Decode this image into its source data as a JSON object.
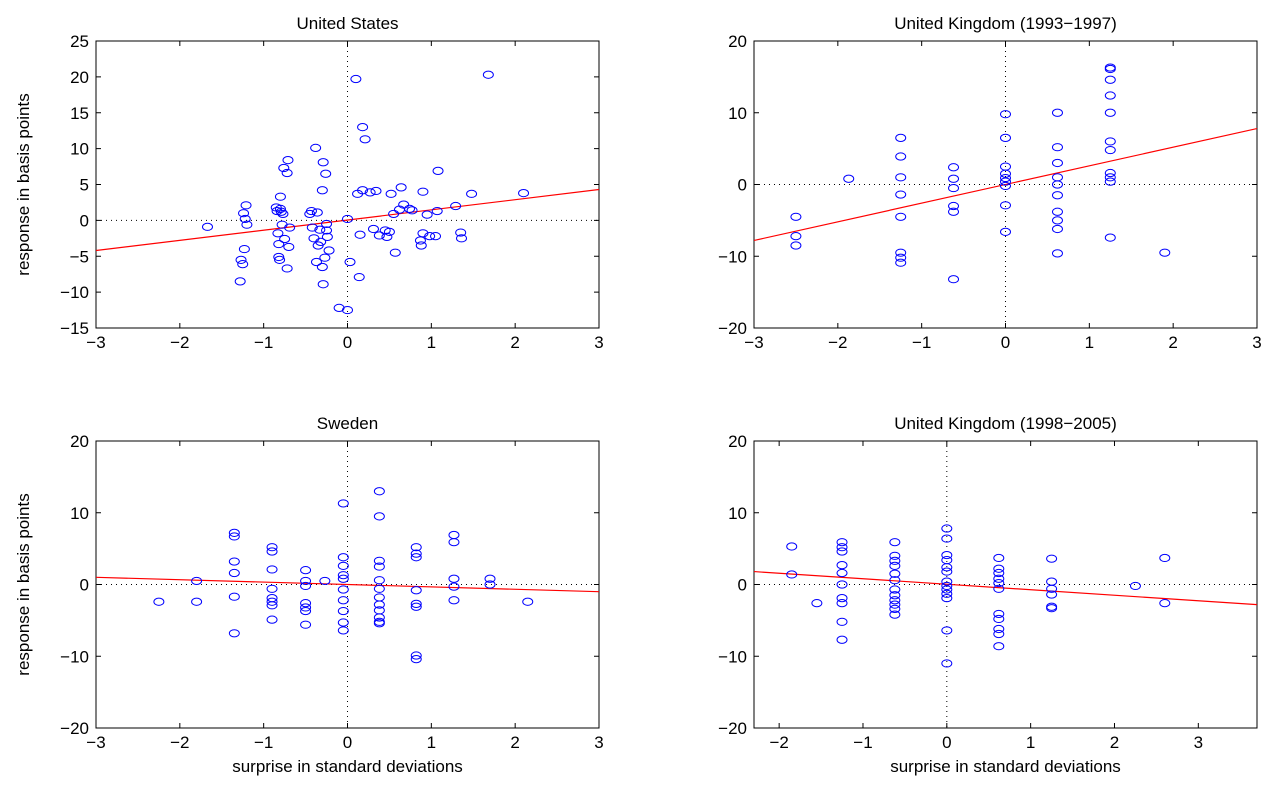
{
  "colors": {
    "marker": "#0000ff",
    "fit": "#ff0000",
    "axis": "#000000",
    "zero_line": "#000000"
  },
  "chart_data": [
    {
      "type": "scatter",
      "title": "United States",
      "xlabel": "",
      "ylabel": "response in basis points",
      "xlim": [
        -3,
        3
      ],
      "ylim": [
        -15,
        25
      ],
      "xticks": [
        -3,
        -2,
        -1,
        0,
        1,
        2,
        3
      ],
      "yticks": [
        -15,
        -10,
        -5,
        0,
        5,
        10,
        15,
        20,
        25
      ],
      "grid": false,
      "reference_lines": {
        "x": 0,
        "y": 0,
        "style": "dotted"
      },
      "fit_line": {
        "x": [
          -3,
          3
        ],
        "y": [
          -4.2,
          4.3
        ]
      },
      "points": [
        {
          "x": -1.67,
          "y": -0.9
        },
        {
          "x": -1.28,
          "y": -8.5
        },
        {
          "x": -1.27,
          "y": -5.5
        },
        {
          "x": -1.25,
          "y": -6.1
        },
        {
          "x": -1.24,
          "y": 1.0
        },
        {
          "x": -1.23,
          "y": -4.0
        },
        {
          "x": -1.22,
          "y": 0.2
        },
        {
          "x": -1.21,
          "y": 2.1
        },
        {
          "x": -1.2,
          "y": -0.6
        },
        {
          "x": -0.85,
          "y": 1.8
        },
        {
          "x": -0.84,
          "y": 1.3
        },
        {
          "x": -0.83,
          "y": -1.8
        },
        {
          "x": -0.82,
          "y": -3.3
        },
        {
          "x": -0.82,
          "y": -5.1
        },
        {
          "x": -0.81,
          "y": -5.5
        },
        {
          "x": -0.8,
          "y": 3.3
        },
        {
          "x": -0.8,
          "y": 1.6
        },
        {
          "x": -0.79,
          "y": 1.2
        },
        {
          "x": -0.78,
          "y": -0.6
        },
        {
          "x": -0.77,
          "y": 0.9
        },
        {
          "x": -0.76,
          "y": 7.3
        },
        {
          "x": -0.75,
          "y": -2.6
        },
        {
          "x": -0.72,
          "y": 6.6
        },
        {
          "x": -0.72,
          "y": -6.7
        },
        {
          "x": -0.71,
          "y": 8.4
        },
        {
          "x": -0.7,
          "y": -3.7
        },
        {
          "x": -0.69,
          "y": -1.0
        },
        {
          "x": -0.45,
          "y": 0.9
        },
        {
          "x": -0.43,
          "y": 1.3
        },
        {
          "x": -0.42,
          "y": -1.0
        },
        {
          "x": -0.4,
          "y": -2.5
        },
        {
          "x": -0.38,
          "y": 10.1
        },
        {
          "x": -0.37,
          "y": -5.8
        },
        {
          "x": -0.36,
          "y": 1.1
        },
        {
          "x": -0.35,
          "y": -3.5
        },
        {
          "x": -0.33,
          "y": -1.3
        },
        {
          "x": -0.32,
          "y": -3.0
        },
        {
          "x": -0.3,
          "y": 4.2
        },
        {
          "x": -0.3,
          "y": -6.5
        },
        {
          "x": -0.29,
          "y": 8.1
        },
        {
          "x": -0.29,
          "y": -8.9
        },
        {
          "x": -0.27,
          "y": -5.2
        },
        {
          "x": -0.26,
          "y": 6.5
        },
        {
          "x": -0.25,
          "y": -0.5
        },
        {
          "x": -0.25,
          "y": -1.4
        },
        {
          "x": -0.24,
          "y": -2.3
        },
        {
          "x": -0.22,
          "y": -4.2
        },
        {
          "x": -0.1,
          "y": -12.2
        },
        {
          "x": 0.0,
          "y": 0.2
        },
        {
          "x": 0.0,
          "y": -12.5
        },
        {
          "x": 0.03,
          "y": -5.8
        },
        {
          "x": 0.1,
          "y": 19.7
        },
        {
          "x": 0.12,
          "y": 3.7
        },
        {
          "x": 0.14,
          "y": -7.9
        },
        {
          "x": 0.15,
          "y": -2.0
        },
        {
          "x": 0.18,
          "y": 4.2
        },
        {
          "x": 0.18,
          "y": 13.0
        },
        {
          "x": 0.21,
          "y": 11.3
        },
        {
          "x": 0.27,
          "y": 3.9
        },
        {
          "x": 0.31,
          "y": -1.2
        },
        {
          "x": 0.34,
          "y": 4.1
        },
        {
          "x": 0.38,
          "y": -2.1
        },
        {
          "x": 0.45,
          "y": -1.4
        },
        {
          "x": 0.47,
          "y": -2.3
        },
        {
          "x": 0.5,
          "y": -1.6
        },
        {
          "x": 0.52,
          "y": 3.7
        },
        {
          "x": 0.55,
          "y": 0.9
        },
        {
          "x": 0.57,
          "y": -4.5
        },
        {
          "x": 0.62,
          "y": 1.5
        },
        {
          "x": 0.64,
          "y": 4.6
        },
        {
          "x": 0.67,
          "y": 2.2
        },
        {
          "x": 0.74,
          "y": 1.6
        },
        {
          "x": 0.77,
          "y": 1.4
        },
        {
          "x": 0.87,
          "y": -2.8
        },
        {
          "x": 0.88,
          "y": -3.5
        },
        {
          "x": 0.9,
          "y": -1.8
        },
        {
          "x": 0.9,
          "y": 4.0
        },
        {
          "x": 0.95,
          "y": 0.8
        },
        {
          "x": 0.98,
          "y": -2.2
        },
        {
          "x": 1.05,
          "y": -2.2
        },
        {
          "x": 1.07,
          "y": 1.3
        },
        {
          "x": 1.08,
          "y": 6.9
        },
        {
          "x": 1.29,
          "y": 2.0
        },
        {
          "x": 1.35,
          "y": -1.7
        },
        {
          "x": 1.36,
          "y": -2.5
        },
        {
          "x": 1.48,
          "y": 3.7
        },
        {
          "x": 1.68,
          "y": 20.3
        },
        {
          "x": 2.1,
          "y": 3.8
        }
      ]
    },
    {
      "type": "scatter",
      "title": "United Kingdom (1993−1997)",
      "xlabel": "",
      "ylabel": "",
      "xlim": [
        -3,
        3
      ],
      "ylim": [
        -20,
        20
      ],
      "xticks": [
        -3,
        -2,
        -1,
        0,
        1,
        2,
        3
      ],
      "yticks": [
        -20,
        -10,
        0,
        10,
        20
      ],
      "grid": false,
      "reference_lines": {
        "x": 0,
        "y": 0,
        "style": "dotted"
      },
      "fit_line": {
        "x": [
          -3,
          3
        ],
        "y": [
          -7.8,
          7.8
        ]
      },
      "points": [
        {
          "x": -2.5,
          "y": -4.5
        },
        {
          "x": -2.5,
          "y": -7.2
        },
        {
          "x": -2.5,
          "y": -8.5
        },
        {
          "x": -1.87,
          "y": 0.8
        },
        {
          "x": -1.25,
          "y": 6.5
        },
        {
          "x": -1.25,
          "y": 3.9
        },
        {
          "x": -1.25,
          "y": 1.0
        },
        {
          "x": -1.25,
          "y": -1.4
        },
        {
          "x": -1.25,
          "y": -4.5
        },
        {
          "x": -1.25,
          "y": -9.5
        },
        {
          "x": -1.25,
          "y": -10.2
        },
        {
          "x": -1.25,
          "y": -10.9
        },
        {
          "x": -0.62,
          "y": 2.4
        },
        {
          "x": -0.62,
          "y": 0.8
        },
        {
          "x": -0.62,
          "y": -0.5
        },
        {
          "x": -0.62,
          "y": -3.0
        },
        {
          "x": -0.62,
          "y": -3.8
        },
        {
          "x": -0.62,
          "y": -13.2
        },
        {
          "x": 0.0,
          "y": 9.8
        },
        {
          "x": 0.0,
          "y": 6.5
        },
        {
          "x": 0.0,
          "y": 2.5
        },
        {
          "x": 0.0,
          "y": 1.5
        },
        {
          "x": 0.0,
          "y": 0.9
        },
        {
          "x": 0.0,
          "y": 0.4
        },
        {
          "x": 0.0,
          "y": -0.2
        },
        {
          "x": 0.0,
          "y": -2.9
        },
        {
          "x": 0.0,
          "y": -6.6
        },
        {
          "x": 0.62,
          "y": 10.0
        },
        {
          "x": 0.62,
          "y": 5.2
        },
        {
          "x": 0.62,
          "y": 3.0
        },
        {
          "x": 0.62,
          "y": 1.0
        },
        {
          "x": 0.62,
          "y": 0.0
        },
        {
          "x": 0.62,
          "y": -1.5
        },
        {
          "x": 0.62,
          "y": -3.8
        },
        {
          "x": 0.62,
          "y": -5.0
        },
        {
          "x": 0.62,
          "y": -6.2
        },
        {
          "x": 0.62,
          "y": -9.6
        },
        {
          "x": 1.25,
          "y": 16.3
        },
        {
          "x": 1.25,
          "y": 16.1
        },
        {
          "x": 1.25,
          "y": 14.6
        },
        {
          "x": 1.25,
          "y": 12.4
        },
        {
          "x": 1.25,
          "y": 10.0
        },
        {
          "x": 1.25,
          "y": 6.0
        },
        {
          "x": 1.25,
          "y": 4.8
        },
        {
          "x": 1.25,
          "y": 1.6
        },
        {
          "x": 1.25,
          "y": 1.0
        },
        {
          "x": 1.25,
          "y": 0.4
        },
        {
          "x": 1.25,
          "y": -7.4
        },
        {
          "x": 1.9,
          "y": -9.5
        }
      ]
    },
    {
      "type": "scatter",
      "title": "Sweden",
      "xlabel": "surprise in standard deviations",
      "ylabel": "response in basis points",
      "xlim": [
        -3,
        3
      ],
      "ylim": [
        -20,
        20
      ],
      "xticks": [
        -3,
        -2,
        -1,
        0,
        1,
        2,
        3
      ],
      "yticks": [
        -20,
        -10,
        0,
        10,
        20
      ],
      "grid": false,
      "reference_lines": {
        "x": 0,
        "y": 0,
        "style": "dotted"
      },
      "fit_line": {
        "x": [
          -3,
          3
        ],
        "y": [
          1.0,
          -1.0
        ]
      },
      "points": [
        {
          "x": -2.25,
          "y": -2.4
        },
        {
          "x": -1.8,
          "y": 0.5
        },
        {
          "x": -1.8,
          "y": -2.4
        },
        {
          "x": -1.35,
          "y": 7.2
        },
        {
          "x": -1.35,
          "y": 6.7
        },
        {
          "x": -1.35,
          "y": 3.2
        },
        {
          "x": -1.35,
          "y": 1.6
        },
        {
          "x": -1.35,
          "y": -1.7
        },
        {
          "x": -1.35,
          "y": -6.8
        },
        {
          "x": -0.9,
          "y": 5.2
        },
        {
          "x": -0.9,
          "y": 4.6
        },
        {
          "x": -0.9,
          "y": 2.1
        },
        {
          "x": -0.9,
          "y": -0.6
        },
        {
          "x": -0.9,
          "y": -1.9
        },
        {
          "x": -0.9,
          "y": -2.4
        },
        {
          "x": -0.9,
          "y": -2.9
        },
        {
          "x": -0.9,
          "y": -4.9
        },
        {
          "x": -0.5,
          "y": 2.0
        },
        {
          "x": -0.5,
          "y": 0.5
        },
        {
          "x": -0.5,
          "y": -0.2
        },
        {
          "x": -0.5,
          "y": -2.6
        },
        {
          "x": -0.5,
          "y": -3.2
        },
        {
          "x": -0.5,
          "y": -3.7
        },
        {
          "x": -0.5,
          "y": -5.6
        },
        {
          "x": -0.27,
          "y": 0.5
        },
        {
          "x": -0.05,
          "y": 11.3
        },
        {
          "x": -0.05,
          "y": 3.8
        },
        {
          "x": -0.05,
          "y": 2.6
        },
        {
          "x": -0.05,
          "y": 1.3
        },
        {
          "x": -0.05,
          "y": 0.8
        },
        {
          "x": -0.05,
          "y": -0.7
        },
        {
          "x": -0.05,
          "y": -2.2
        },
        {
          "x": -0.05,
          "y": -3.7
        },
        {
          "x": -0.05,
          "y": -5.3
        },
        {
          "x": -0.05,
          "y": -6.4
        },
        {
          "x": 0.38,
          "y": 13.0
        },
        {
          "x": 0.38,
          "y": 9.5
        },
        {
          "x": 0.38,
          "y": 3.3
        },
        {
          "x": 0.38,
          "y": 2.5
        },
        {
          "x": 0.38,
          "y": 0.6
        },
        {
          "x": 0.38,
          "y": -0.6
        },
        {
          "x": 0.38,
          "y": -1.8
        },
        {
          "x": 0.38,
          "y": -2.8
        },
        {
          "x": 0.38,
          "y": -3.6
        },
        {
          "x": 0.38,
          "y": -4.6
        },
        {
          "x": 0.38,
          "y": -5.2
        },
        {
          "x": 0.38,
          "y": -5.4
        },
        {
          "x": 0.82,
          "y": 5.2
        },
        {
          "x": 0.82,
          "y": 4.3
        },
        {
          "x": 0.82,
          "y": 3.8
        },
        {
          "x": 0.82,
          "y": -0.8
        },
        {
          "x": 0.82,
          "y": -2.7
        },
        {
          "x": 0.82,
          "y": -3.1
        },
        {
          "x": 0.82,
          "y": -9.9
        },
        {
          "x": 0.82,
          "y": -10.4
        },
        {
          "x": 1.27,
          "y": 6.9
        },
        {
          "x": 1.27,
          "y": 5.9
        },
        {
          "x": 1.27,
          "y": 0.8
        },
        {
          "x": 1.27,
          "y": -0.3
        },
        {
          "x": 1.27,
          "y": -2.2
        },
        {
          "x": 1.7,
          "y": 0.8
        },
        {
          "x": 1.7,
          "y": 0.0
        },
        {
          "x": 2.15,
          "y": -2.4
        }
      ]
    },
    {
      "type": "scatter",
      "title": "United Kingdom (1998−2005)",
      "xlabel": "surprise in standard deviations",
      "ylabel": "",
      "xlim": [
        -2.3,
        3.7
      ],
      "ylim": [
        -20,
        20
      ],
      "xticks": [
        -2,
        -1,
        0,
        1,
        2,
        3
      ],
      "yticks": [
        -20,
        -10,
        0,
        10,
        20
      ],
      "grid": false,
      "reference_lines": {
        "x": 0,
        "y": 0,
        "style": "dotted"
      },
      "fit_line": {
        "x": [
          -2.3,
          3.7
        ],
        "y": [
          1.8,
          -2.8
        ]
      },
      "points": [
        {
          "x": -1.85,
          "y": 5.3
        },
        {
          "x": -1.85,
          "y": 1.4
        },
        {
          "x": -1.55,
          "y": -2.6
        },
        {
          "x": -1.25,
          "y": 5.9
        },
        {
          "x": -1.25,
          "y": 5.2
        },
        {
          "x": -1.25,
          "y": 4.6
        },
        {
          "x": -1.25,
          "y": 2.7
        },
        {
          "x": -1.25,
          "y": 1.6
        },
        {
          "x": -1.25,
          "y": 0.0
        },
        {
          "x": -1.25,
          "y": -1.9
        },
        {
          "x": -1.25,
          "y": -2.6
        },
        {
          "x": -1.25,
          "y": -5.2
        },
        {
          "x": -1.25,
          "y": -7.7
        },
        {
          "x": -0.62,
          "y": 5.9
        },
        {
          "x": -0.62,
          "y": 4.0
        },
        {
          "x": -0.62,
          "y": 3.3
        },
        {
          "x": -0.62,
          "y": 2.6
        },
        {
          "x": -0.62,
          "y": 1.5
        },
        {
          "x": -0.62,
          "y": 0.6
        },
        {
          "x": -0.62,
          "y": -0.7
        },
        {
          "x": -0.62,
          "y": -1.5
        },
        {
          "x": -0.62,
          "y": -2.2
        },
        {
          "x": -0.62,
          "y": -2.8
        },
        {
          "x": -0.62,
          "y": -3.4
        },
        {
          "x": -0.62,
          "y": -4.2
        },
        {
          "x": 0.0,
          "y": 7.8
        },
        {
          "x": 0.0,
          "y": 6.4
        },
        {
          "x": 0.0,
          "y": 4.1
        },
        {
          "x": 0.0,
          "y": 3.4
        },
        {
          "x": 0.0,
          "y": 2.4
        },
        {
          "x": 0.0,
          "y": 1.8
        },
        {
          "x": 0.0,
          "y": 0.4
        },
        {
          "x": 0.0,
          "y": -0.2
        },
        {
          "x": 0.0,
          "y": -0.7
        },
        {
          "x": 0.0,
          "y": -1.3
        },
        {
          "x": 0.0,
          "y": -1.9
        },
        {
          "x": 0.0,
          "y": -6.4
        },
        {
          "x": 0.0,
          "y": -11.0
        },
        {
          "x": 0.62,
          "y": 3.7
        },
        {
          "x": 0.62,
          "y": 2.2
        },
        {
          "x": 0.62,
          "y": 1.6
        },
        {
          "x": 0.62,
          "y": 0.8
        },
        {
          "x": 0.62,
          "y": 0.2
        },
        {
          "x": 0.62,
          "y": -0.6
        },
        {
          "x": 0.62,
          "y": -4.1
        },
        {
          "x": 0.62,
          "y": -4.8
        },
        {
          "x": 0.62,
          "y": -6.2
        },
        {
          "x": 0.62,
          "y": -6.9
        },
        {
          "x": 0.62,
          "y": -8.6
        },
        {
          "x": 1.25,
          "y": 3.6
        },
        {
          "x": 1.25,
          "y": 0.4
        },
        {
          "x": 1.25,
          "y": -0.6
        },
        {
          "x": 1.25,
          "y": -1.4
        },
        {
          "x": 1.25,
          "y": -3.1
        },
        {
          "x": 1.25,
          "y": -3.3
        },
        {
          "x": 2.25,
          "y": -0.2
        },
        {
          "x": 2.6,
          "y": 3.7
        },
        {
          "x": 2.6,
          "y": -2.6
        }
      ]
    }
  ]
}
